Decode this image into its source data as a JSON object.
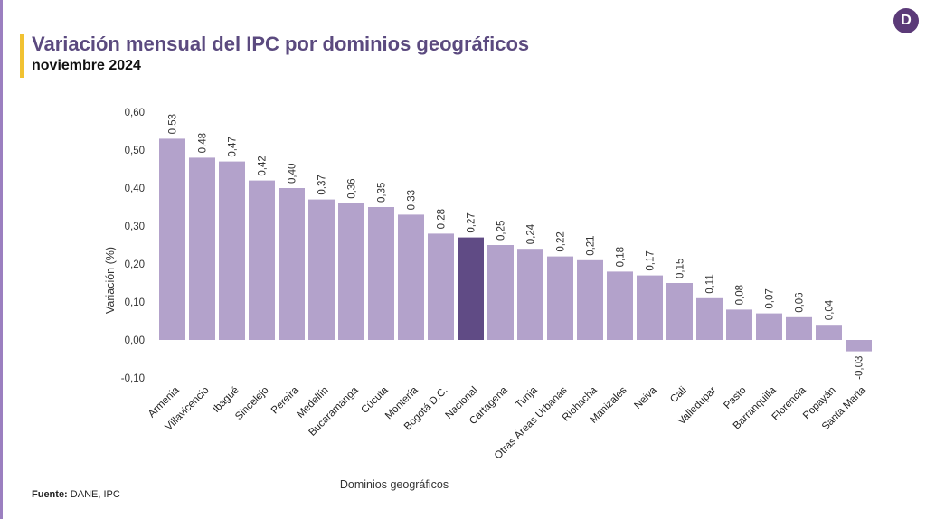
{
  "header": {
    "title": "Variación mensual del IPC por dominios geográficos",
    "subtitle": "noviembre 2024"
  },
  "logo": {
    "icon": "dane-logo-icon",
    "letter": "D"
  },
  "footer": {
    "source_label": "Fuente:",
    "source_value": "DANE, IPC"
  },
  "colors": {
    "bar": "#b3a2cb",
    "highlight_bar": "#604b85",
    "title": "#5b4a7f",
    "accent": "#f1c232"
  },
  "chart_data": {
    "type": "bar",
    "xlabel": "Dominios geográficos",
    "ylabel": "Variación (%)",
    "ylim": [
      -0.1,
      0.6
    ],
    "yticks": [
      "-0,10",
      "0,00",
      "0,10",
      "0,20",
      "0,30",
      "0,40",
      "0,50",
      "0,60"
    ],
    "grid": false,
    "highlight": "Nacional",
    "categories": [
      "Armenia",
      "Villavicencio",
      "Ibagué",
      "Sincelejo",
      "Pereira",
      "Medellín",
      "Bucaramanga",
      "Cúcuta",
      "Montería",
      "Bogotá D.C.",
      "Nacional",
      "Cartagena",
      "Tunja",
      "Otras Áreas Urbanas",
      "Riohacha",
      "Manizales",
      "Neiva",
      "Cali",
      "Valledupar",
      "Pasto",
      "Barranquilla",
      "Florencia",
      "Popayán",
      "Santa Marta"
    ],
    "values": [
      0.53,
      0.48,
      0.47,
      0.42,
      0.4,
      0.37,
      0.36,
      0.35,
      0.33,
      0.28,
      0.27,
      0.25,
      0.24,
      0.22,
      0.21,
      0.18,
      0.17,
      0.15,
      0.11,
      0.08,
      0.07,
      0.06,
      0.04,
      -0.03
    ],
    "value_labels": [
      "0,53",
      "0,48",
      "0,47",
      "0,42",
      "0,40",
      "0,37",
      "0,36",
      "0,35",
      "0,33",
      "0,28",
      "0,27",
      "0,25",
      "0,24",
      "0,22",
      "0,21",
      "0,18",
      "0,17",
      "0,15",
      "0,11",
      "0,08",
      "0,07",
      "0,06",
      "0,04",
      "-0,03"
    ]
  }
}
